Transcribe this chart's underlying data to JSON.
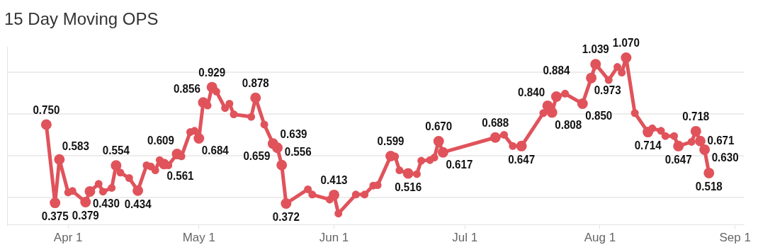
{
  "chart_data": {
    "type": "line",
    "title": "15 Day Moving OPS",
    "x": [
      "--03-27",
      "--03-29",
      "--03-30",
      "--04-01",
      "--04-02",
      "--04-05",
      "--04-06",
      "--04-08",
      "--04-09",
      "--04-11",
      "--04-12",
      "--04-13",
      "--04-15",
      "--04-17",
      "--04-19",
      "--04-20",
      "--04-21",
      "--04-22",
      "--04-23",
      "--04-24",
      "--04-26",
      "--04-27",
      "--04-29",
      "--04-30",
      "--05-01",
      "--05-02",
      "--05-03",
      "--05-04",
      "--05-05",
      "--05-07",
      "--05-08",
      "--05-09",
      "--05-13",
      "--05-14",
      "--05-16",
      "--05-18",
      "--05-19",
      "--05-20",
      "--05-21",
      "--05-26",
      "--05-27",
      "--05-31",
      "--06-01",
      "--06-02",
      "--06-06",
      "--06-08",
      "--06-10",
      "--06-11",
      "--06-14",
      "--06-15",
      "--06-16",
      "--06-18",
      "--06-20",
      "--06-21",
      "--06-23",
      "--06-24",
      "--06-25",
      "--06-26",
      "--07-08",
      "--07-10",
      "--07-12",
      "--07-14",
      "--07-19",
      "--07-20",
      "--07-21",
      "--07-22",
      "--07-24",
      "--07-28",
      "--07-30",
      "--07-31",
      "--08-03",
      "--08-05",
      "--08-06",
      "--08-07",
      "--08-09",
      "--08-12",
      "--08-13",
      "--08-15",
      "--08-16",
      "--08-18",
      "--08-19",
      "--08-22",
      "--08-23",
      "--08-24",
      "--08-25",
      "--08-26"
    ],
    "series": [
      {
        "color": "#e0535b",
        "values": [
          0.75,
          0.375,
          0.583,
          0.425,
          0.432,
          0.379,
          0.43,
          0.466,
          0.429,
          0.447,
          0.554,
          0.52,
          0.494,
          0.434,
          0.555,
          0.549,
          0.531,
          0.58,
          0.561,
          0.555,
          0.609,
          0.598,
          0.714,
          0.72,
          0.684,
          0.856,
          0.841,
          0.929,
          0.908,
          0.829,
          0.85,
          0.799,
          0.787,
          0.878,
          0.75,
          0.659,
          0.639,
          0.556,
          0.372,
          0.44,
          0.415,
          0.391,
          0.413,
          0.324,
          0.415,
          0.415,
          0.458,
          0.46,
          0.599,
          0.597,
          0.531,
          0.516,
          0.513,
          0.577,
          0.58,
          0.592,
          0.67,
          0.617,
          0.688,
          0.701,
          0.647,
          0.647,
          0.805,
          0.84,
          0.808,
          0.884,
          0.898,
          0.85,
          0.973,
          1.039,
          0.963,
          1.026,
          0.999,
          1.07,
          0.805,
          0.714,
          0.732,
          0.72,
          0.695,
          0.695,
          0.647,
          0.667,
          0.718,
          0.671,
          0.63,
          0.518
        ],
        "value_labels": [
          "0.750",
          "0.375",
          "0.583",
          null,
          null,
          "0.379",
          "0.430",
          null,
          null,
          null,
          "0.554",
          null,
          null,
          "0.434",
          null,
          null,
          null,
          null,
          "0.561",
          null,
          "0.609",
          null,
          null,
          null,
          "0.684",
          "0.856",
          null,
          "0.929",
          null,
          null,
          null,
          null,
          null,
          "0.878",
          null,
          "0.659",
          "0.639",
          "0.556",
          "0.372",
          null,
          null,
          null,
          "0.413",
          null,
          null,
          null,
          null,
          null,
          "0.599",
          null,
          null,
          "0.516",
          null,
          null,
          null,
          null,
          "0.670",
          "0.617",
          "0.688",
          null,
          null,
          "0.647",
          null,
          "0.840",
          "0.808",
          "0.884",
          null,
          "0.850",
          "0.973",
          "1.039",
          null,
          null,
          null,
          "1.070",
          null,
          "0.714",
          null,
          null,
          null,
          null,
          "0.647",
          null,
          "0.718",
          "0.671",
          "0.630",
          "0.518"
        ]
      }
    ],
    "xlim": [
      "--03-18",
      "--09-03"
    ],
    "xticks": [
      {
        "value": "--04-01",
        "label": "Apr 1"
      },
      {
        "value": "--05-01",
        "label": "May 1"
      },
      {
        "value": "--06-01",
        "label": "Jun 1"
      },
      {
        "value": "--07-01",
        "label": "Jul 1"
      },
      {
        "value": "--08-01",
        "label": "Aug 1"
      },
      {
        "value": "--09-01",
        "label": "Sep 1"
      }
    ],
    "ylim": [
      0.27,
      1.12
    ],
    "yticks": [
      {
        "value": 0.4,
        "label": null
      },
      {
        "value": 0.6,
        "label": null
      },
      {
        "value": 0.8,
        "label": null
      },
      {
        "value": 1.0,
        "label": null
      }
    ],
    "tick_labels": "x",
    "grid": "y",
    "legend": false,
    "marker": "circle",
    "line_style": "solid"
  }
}
